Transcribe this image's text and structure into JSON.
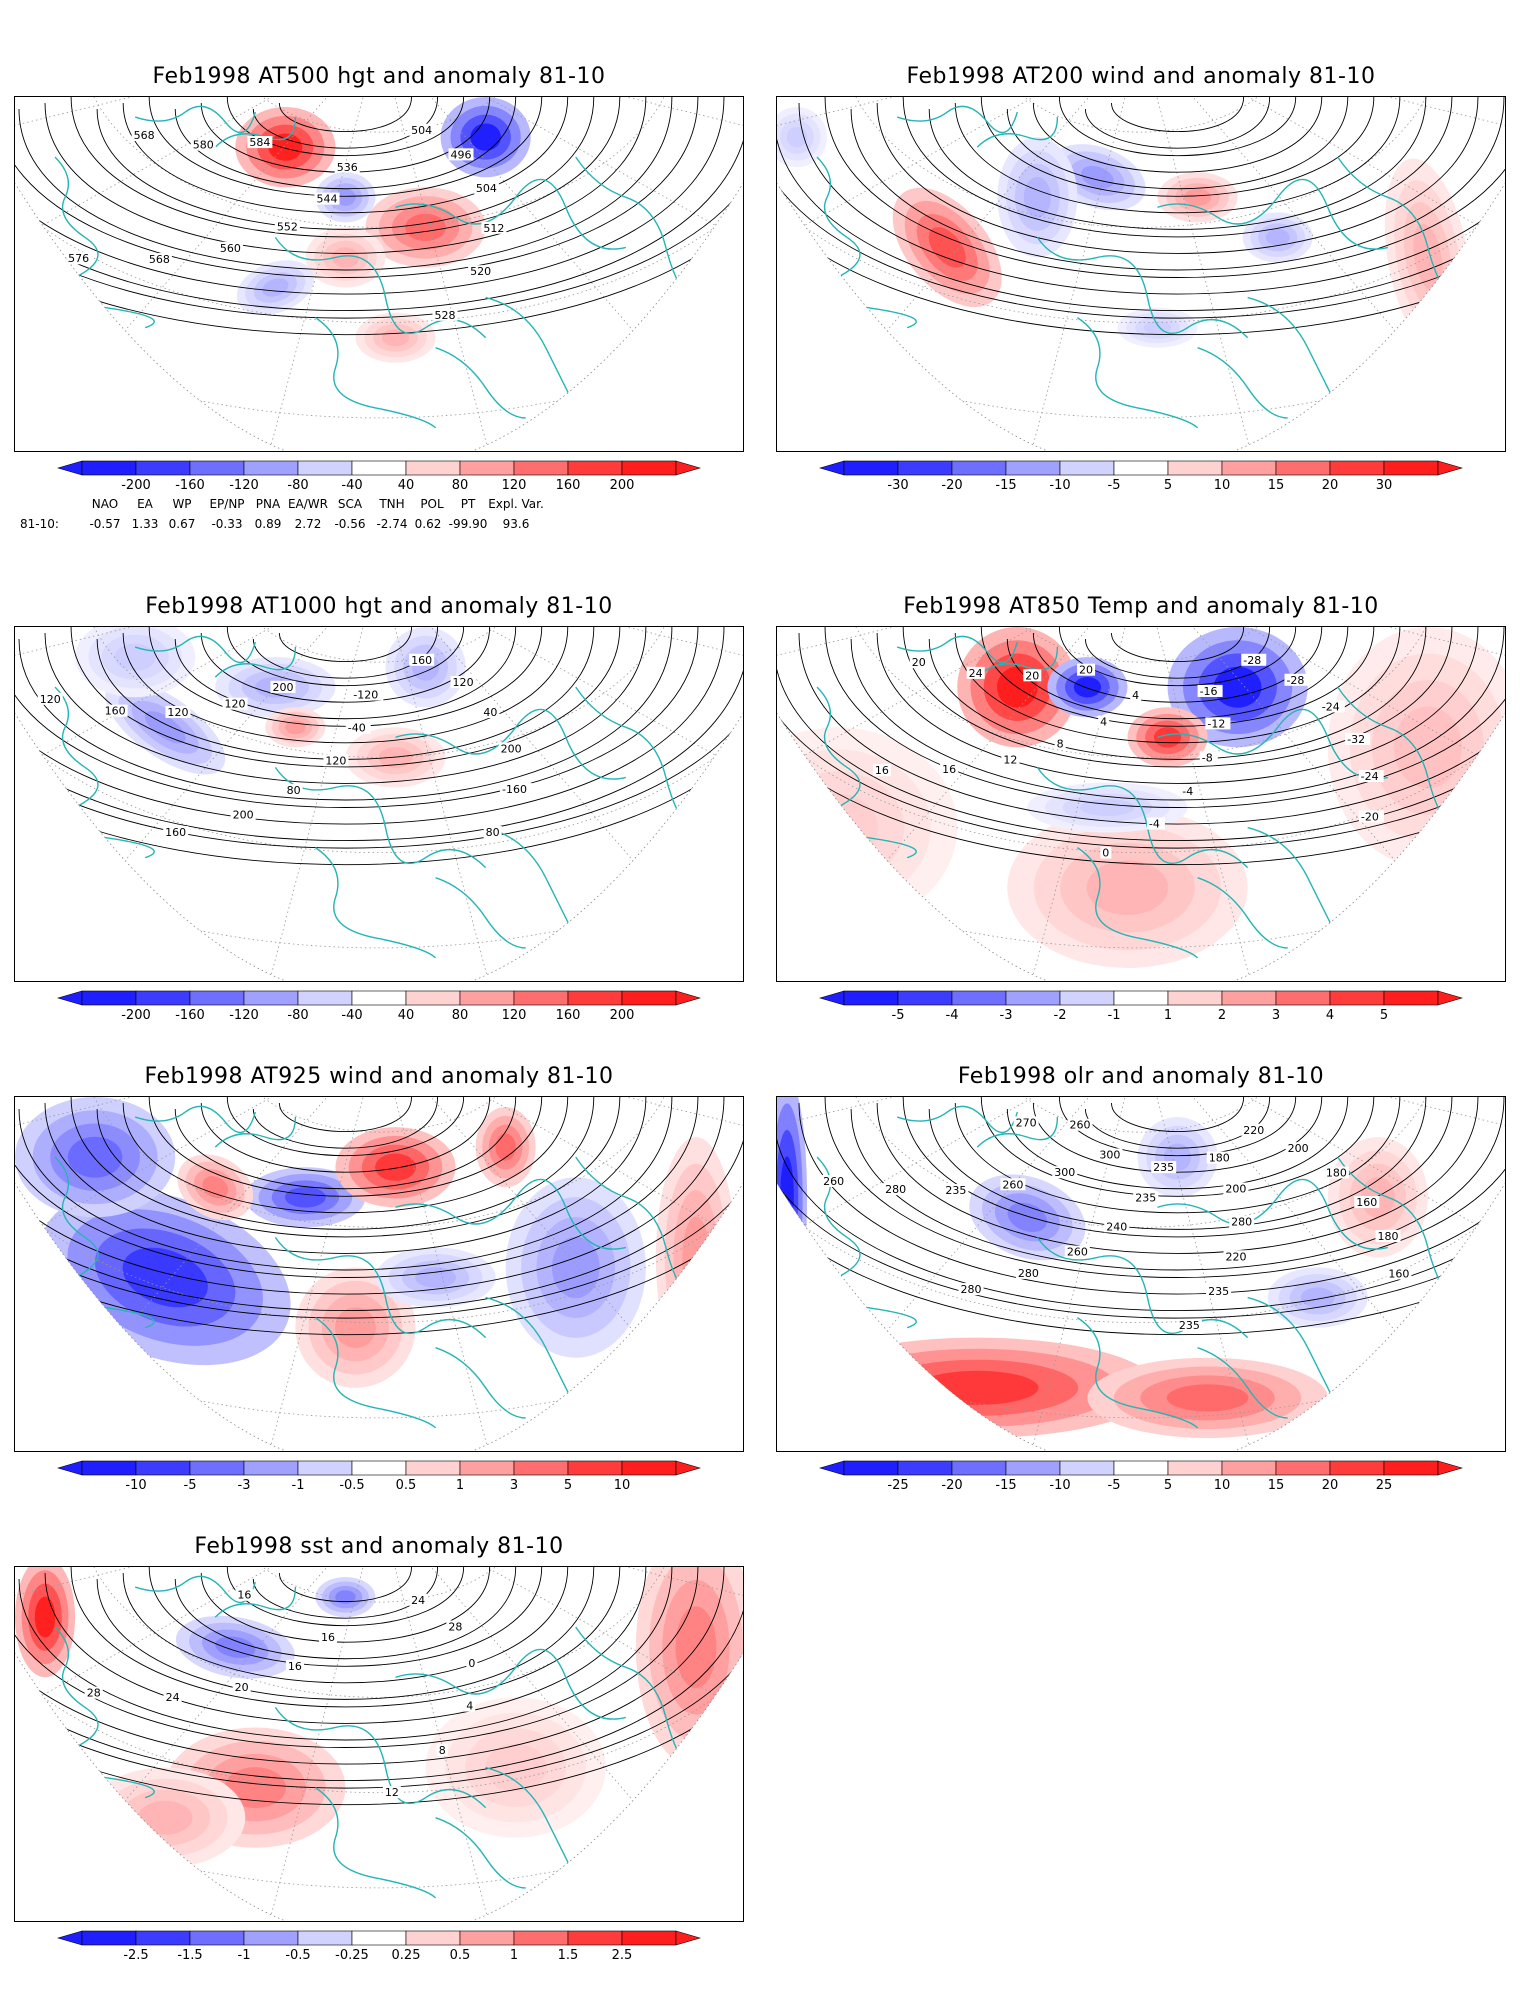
{
  "panels": [
    {
      "id": "at500",
      "title": "Feb1998 AT500 hgt and anomaly 81-10",
      "contour_labels": [
        "504",
        "496",
        "504",
        "512",
        "520",
        "528",
        "536",
        "544",
        "552",
        "560",
        "568",
        "576",
        "584",
        "580",
        "568"
      ],
      "colorbar": {
        "ticks": [
          "-200",
          "-160",
          "-120",
          "-80",
          "-40",
          "40",
          "80",
          "120",
          "160",
          "200"
        ]
      }
    },
    {
      "id": "at200",
      "title": "Feb1998 AT200 wind and anomaly 81-10",
      "contour_labels": [],
      "colorbar": {
        "ticks": [
          "-30",
          "-20",
          "-15",
          "-10",
          "-5",
          "5",
          "10",
          "15",
          "20",
          "30"
        ]
      }
    },
    {
      "id": "at1000",
      "title": "Feb1998 AT1000 hgt and anomaly 81-10",
      "contour_labels": [
        "160",
        "120",
        "40",
        "200",
        "-160",
        "80",
        "-120",
        "-40",
        "120",
        "80",
        "200",
        "160",
        "200",
        "120",
        "120",
        "160",
        "120",
        "120"
      ],
      "colorbar": {
        "ticks": [
          "-200",
          "-160",
          "-120",
          "-80",
          "-40",
          "40",
          "80",
          "120",
          "160",
          "200"
        ]
      }
    },
    {
      "id": "at850",
      "title": "Feb1998 AT850 Temp and anomaly 81-10",
      "contour_labels": [
        "-28",
        "-28",
        "-24",
        "-32",
        "-24",
        "-20",
        "-16",
        "-12",
        "-8",
        "-4",
        "-4",
        "0",
        "4",
        "4",
        "8",
        "12",
        "16",
        "16",
        "20",
        "20",
        "24",
        "20"
      ],
      "colorbar": {
        "ticks": [
          "-5",
          "-4",
          "-3",
          "-2",
          "-1",
          "1",
          "2",
          "3",
          "4",
          "5"
        ]
      }
    },
    {
      "id": "at925",
      "title": "Feb1998 AT925 wind and anomaly 81-10",
      "contour_labels": [],
      "colorbar": {
        "ticks": [
          "-10",
          "-5",
          "-3",
          "-1",
          "-0.5",
          "0.5",
          "1",
          "3",
          "5",
          "10"
        ]
      }
    },
    {
      "id": "olr",
      "title": "Feb1998 olr and anomaly 81-10",
      "contour_labels": [
        "220",
        "200",
        "180",
        "160",
        "180",
        "160",
        "180",
        "200",
        "280",
        "220",
        "235",
        "235",
        "235",
        "235",
        "240",
        "260",
        "280",
        "280",
        "300",
        "300",
        "260",
        "235",
        "280",
        "260",
        "260",
        "270"
      ],
      "colorbar": {
        "ticks": [
          "-25",
          "-20",
          "-15",
          "-10",
          "-5",
          "5",
          "10",
          "15",
          "20",
          "25"
        ]
      }
    },
    {
      "id": "sst",
      "title": "Feb1998 sst and anomaly 81-10",
      "contour_labels": [
        "24",
        "28",
        "0",
        "4",
        "8",
        "12",
        "16",
        "16",
        "20",
        "24",
        "28",
        "28",
        "16"
      ],
      "colorbar": {
        "ticks": [
          "-2.5",
          "-1.5",
          "-1",
          "-0.5",
          "-0.25",
          "0.25",
          "0.5",
          "1",
          "1.5",
          "2.5"
        ]
      }
    }
  ],
  "teleconnections": {
    "row_label": "81-10:",
    "headers": [
      "NAO",
      "EA",
      "WP",
      "EP/NP",
      "PNA",
      "EA/WR",
      "SCA",
      "TNH",
      "POL",
      "PT",
      "Expl. Var."
    ],
    "values": [
      "-0.57",
      "1.33",
      "0.67",
      "-0.33",
      "0.89",
      "2.72",
      "-0.56",
      "-2.74",
      "0.62",
      "-99.90",
      "93.6"
    ]
  },
  "colors": {
    "coast": "#26b5b5",
    "neg_strong": "#1e1eff",
    "pos_strong": "#ff1e1e"
  }
}
